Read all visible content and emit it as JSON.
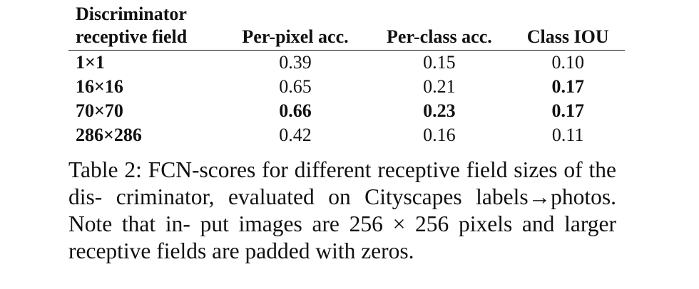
{
  "table": {
    "columns": [
      [
        "Discriminator",
        "receptive field"
      ],
      [
        "Per-pixel acc."
      ],
      [
        "Per-class acc."
      ],
      [
        "Class IOU"
      ]
    ],
    "rows": [
      {
        "field": "1×1",
        "per_pixel": "0.39",
        "per_class": "0.15",
        "class_iou": "0.10",
        "bold": []
      },
      {
        "field": "16×16",
        "per_pixel": "0.65",
        "per_class": "0.21",
        "class_iou": "0.17",
        "bold": [
          "class_iou"
        ]
      },
      {
        "field": "70×70",
        "per_pixel": "0.66",
        "per_class": "0.23",
        "class_iou": "0.17",
        "bold": [
          "per_pixel",
          "per_class",
          "class_iou"
        ]
      },
      {
        "field": "286×286",
        "per_pixel": "0.42",
        "per_class": "0.16",
        "class_iou": "0.11",
        "bold": []
      }
    ]
  },
  "caption": [
    "Table 2: FCN-scores for different receptive field sizes of the dis-",
    "criminator, evaluated on Cityscapes labels→photos. Note that in-",
    "put images are 256 × 256 pixels and larger receptive fields are",
    "padded with zeros."
  ]
}
